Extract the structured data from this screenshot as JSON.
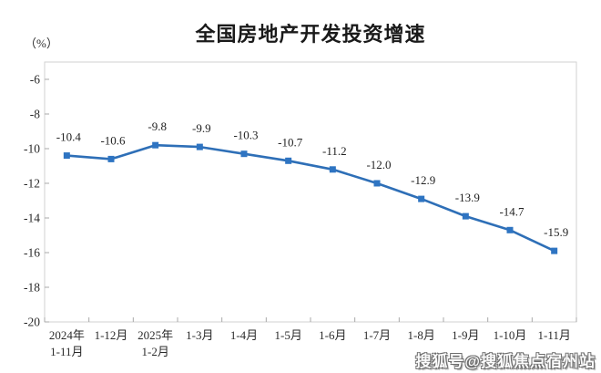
{
  "page": {
    "background": "#ffffff"
  },
  "header": {
    "title": "全国房地产开发投资增速",
    "unit_label": "（%）"
  },
  "chart_data": {
    "type": "line",
    "title": "全国房地产开发投资增速",
    "ylabel": "（%）",
    "xlabel": "",
    "categories": [
      [
        "2024年",
        "1-11月"
      ],
      [
        "1-12月"
      ],
      [
        "2025年",
        "1-2月"
      ],
      [
        "1-3月"
      ],
      [
        "1-4月"
      ],
      [
        "1-5月"
      ],
      [
        "1-6月"
      ],
      [
        "1-7月"
      ],
      [
        "1-8月"
      ],
      [
        "1-9月"
      ],
      [
        "1-10月"
      ],
      [
        "1-11月"
      ]
    ],
    "values": [
      -10.4,
      -10.6,
      -9.8,
      -9.9,
      -10.3,
      -10.7,
      -11.2,
      -12.0,
      -12.9,
      -13.9,
      -14.7,
      -15.9
    ],
    "data_labels": [
      "-10.4",
      "-10.6",
      "-9.8",
      "-9.9",
      "-10.3",
      "-10.7",
      "-11.2",
      "-12.0",
      "-12.9",
      "-13.9",
      "-14.7",
      "-15.9"
    ],
    "y_ticks": [
      -6,
      -8,
      -10,
      -12,
      -14,
      -16,
      -18,
      -20
    ],
    "ylim": [
      -20,
      -5
    ],
    "grid": false,
    "legend": "none",
    "line_color": "#2e6fb7",
    "marker_color": "#2e74c2",
    "frame_color": "#d2d2d2",
    "tick_color": "#a9a9a9",
    "label_color": "#2b2b2b"
  },
  "watermark": {
    "text": "搜狐号@搜狐焦点宿州站"
  }
}
